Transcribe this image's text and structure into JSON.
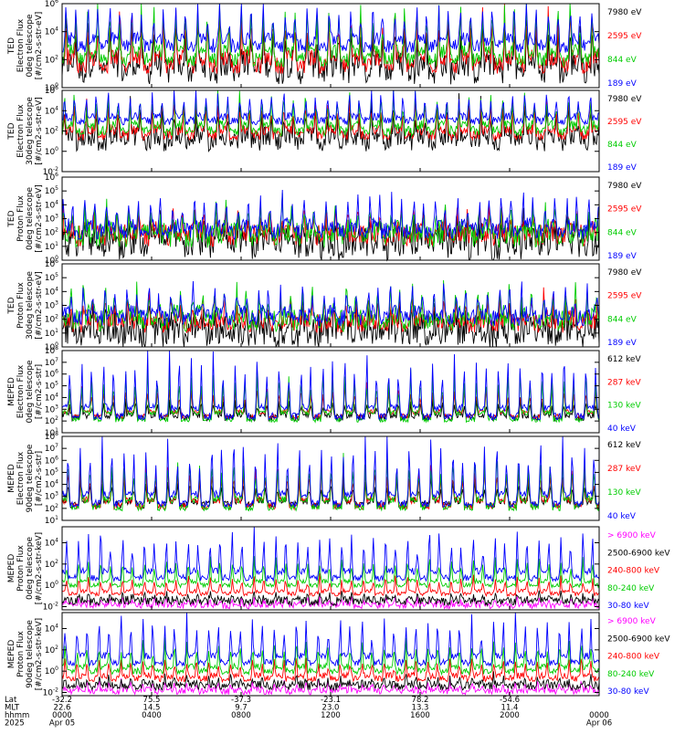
{
  "chart_data": [
    {
      "type": "line",
      "ylabel": [
        "TED",
        "Electron Flux",
        "0deg telescope",
        "[#/cm2-s-str-eV]"
      ],
      "yticks": [
        {
          "exp": "0",
          "v": 0
        },
        {
          "exp": "2",
          "v": 2
        },
        {
          "exp": "4",
          "v": 4
        },
        {
          "exp": "6",
          "v": 6
        }
      ],
      "ylim_log": [
        0,
        6
      ],
      "series": [
        {
          "name": "7980 eV",
          "color": "#000000",
          "base": 1.2,
          "amp": 3.0,
          "noise": 1.0
        },
        {
          "name": "2595 eV",
          "color": "#ff0000",
          "base": 1.6,
          "amp": 3.2,
          "noise": 0.6
        },
        {
          "name": "844 eV",
          "color": "#00cc00",
          "base": 2.0,
          "amp": 3.4,
          "noise": 0.5
        },
        {
          "name": "189 eV",
          "color": "#0000ff",
          "base": 3.0,
          "amp": 2.6,
          "noise": 0.5
        }
      ]
    },
    {
      "type": "line",
      "ylabel": [
        "TED",
        "Electron Flux",
        "30deg telescope",
        "[#/cm2-s-str-eV]"
      ],
      "yticks": [
        {
          "exp": "-2",
          "v": -2
        },
        {
          "exp": "0",
          "v": 0
        },
        {
          "exp": "2",
          "v": 2
        },
        {
          "exp": "4",
          "v": 4
        },
        {
          "exp": "6",
          "v": 6
        }
      ],
      "ylim_log": [
        -2,
        6
      ],
      "series": [
        {
          "name": "7980 eV",
          "color": "#000000",
          "base": 1.0,
          "amp": 3.0,
          "noise": 1.0
        },
        {
          "name": "2595 eV",
          "color": "#ff0000",
          "base": 1.6,
          "amp": 3.0,
          "noise": 0.5
        },
        {
          "name": "844 eV",
          "color": "#00cc00",
          "base": 2.0,
          "amp": 3.2,
          "noise": 0.5
        },
        {
          "name": "189 eV",
          "color": "#0000ff",
          "base": 3.0,
          "amp": 2.4,
          "noise": 0.4
        }
      ]
    },
    {
      "type": "line",
      "ylabel": [
        "TED",
        "Proton Flux",
        "0deg telescope",
        "[#/cm2-s-str-eV]"
      ],
      "yticks": [
        {
          "exp": "0",
          "v": 0
        },
        {
          "exp": "1",
          "v": 1
        },
        {
          "exp": "2",
          "v": 2
        },
        {
          "exp": "3",
          "v": 3
        },
        {
          "exp": "4",
          "v": 4
        },
        {
          "exp": "5",
          "v": 5
        },
        {
          "exp": "6",
          "v": 6
        }
      ],
      "ylim_log": [
        0,
        6
      ],
      "series": [
        {
          "name": "7980 eV",
          "color": "#000000",
          "base": 1.2,
          "amp": 1.5,
          "noise": 1.2
        },
        {
          "name": "2595 eV",
          "color": "#ff0000",
          "base": 1.8,
          "amp": 1.6,
          "noise": 0.8
        },
        {
          "name": "844 eV",
          "color": "#00cc00",
          "base": 1.8,
          "amp": 1.8,
          "noise": 0.9
        },
        {
          "name": "189 eV",
          "color": "#0000ff",
          "base": 2.1,
          "amp": 2.2,
          "noise": 0.6
        }
      ]
    },
    {
      "type": "line",
      "ylabel": [
        "TED",
        "Proton Flux",
        "30deg telescope",
        "[#/cm2-s-str-eV]"
      ],
      "yticks": [
        {
          "exp": "0",
          "v": 0
        },
        {
          "exp": "1",
          "v": 1
        },
        {
          "exp": "2",
          "v": 2
        },
        {
          "exp": "3",
          "v": 3
        },
        {
          "exp": "4",
          "v": 4
        },
        {
          "exp": "5",
          "v": 5
        },
        {
          "exp": "6",
          "v": 6
        }
      ],
      "ylim_log": [
        0,
        6
      ],
      "series": [
        {
          "name": "7980 eV",
          "color": "#000000",
          "base": 1.0,
          "amp": 1.4,
          "noise": 1.1
        },
        {
          "name": "2595 eV",
          "color": "#ff0000",
          "base": 1.7,
          "amp": 1.6,
          "noise": 0.7
        },
        {
          "name": "844 eV",
          "color": "#00cc00",
          "base": 1.9,
          "amp": 2.2,
          "noise": 0.8
        },
        {
          "name": "189 eV",
          "color": "#0000ff",
          "base": 2.1,
          "amp": 2.0,
          "noise": 0.6
        }
      ]
    },
    {
      "type": "line",
      "ylabel": [
        "MEPED",
        "Electron Flux",
        "0deg telescope",
        "[#/cm2-s-str]"
      ],
      "yticks": [
        {
          "exp": "1",
          "v": 1
        },
        {
          "exp": "2",
          "v": 2
        },
        {
          "exp": "3",
          "v": 3
        },
        {
          "exp": "4",
          "v": 4
        },
        {
          "exp": "5",
          "v": 5
        },
        {
          "exp": "6",
          "v": 6
        },
        {
          "exp": "7",
          "v": 7
        },
        {
          "exp": "8",
          "v": 8
        }
      ],
      "ylim_log": [
        1,
        8
      ],
      "series": [
        {
          "name": "612 keV",
          "color": "#000000",
          "base": 2.3,
          "amp": 1.2,
          "noise": 0.3
        },
        {
          "name": "287 keV",
          "color": "#ff0000",
          "base": 2.4,
          "amp": 2.2,
          "noise": 0.2
        },
        {
          "name": "130 keV",
          "color": "#00cc00",
          "base": 2.1,
          "amp": 3.4,
          "noise": 0.2
        },
        {
          "name": "40 keV",
          "color": "#0000ff",
          "base": 2.4,
          "amp": 4.2,
          "noise": 0.3
        }
      ]
    },
    {
      "type": "line",
      "ylabel": [
        "MEPED",
        "Electron Flux",
        "90deg telescope",
        "[#/cm2-s-str]"
      ],
      "yticks": [
        {
          "exp": "1",
          "v": 1
        },
        {
          "exp": "2",
          "v": 2
        },
        {
          "exp": "3",
          "v": 3
        },
        {
          "exp": "4",
          "v": 4
        },
        {
          "exp": "5",
          "v": 5
        },
        {
          "exp": "6",
          "v": 6
        },
        {
          "exp": "7",
          "v": 7
        },
        {
          "exp": "8",
          "v": 8
        }
      ],
      "ylim_log": [
        1,
        8
      ],
      "series": [
        {
          "name": "612 keV",
          "color": "#000000",
          "base": 2.3,
          "amp": 1.8,
          "noise": 0.3
        },
        {
          "name": "287 keV",
          "color": "#ff0000",
          "base": 2.2,
          "amp": 2.8,
          "noise": 0.3
        },
        {
          "name": "130 keV",
          "color": "#00cc00",
          "base": 2.1,
          "amp": 3.6,
          "noise": 0.3
        },
        {
          "name": "40 keV",
          "color": "#0000ff",
          "base": 2.4,
          "amp": 4.4,
          "noise": 0.3
        }
      ]
    },
    {
      "type": "line",
      "ylabel": [
        "MEPED",
        "Proton Flux",
        "0deg telescope",
        "[#/cm2-s-str-keV]"
      ],
      "yticks": [
        {
          "exp": "-2",
          "v": -2
        },
        {
          "exp": "0",
          "v": 0
        },
        {
          "exp": "2",
          "v": 2
        },
        {
          "exp": "4",
          "v": 4
        }
      ],
      "ylim_log": [
        -2.3,
        5.5
      ],
      "series": [
        {
          "name": "> 6900 keV",
          "color": "#ff00ff",
          "base": -1.9,
          "amp": 0.6,
          "noise": 0.3
        },
        {
          "name": "2500-6900 keV",
          "color": "#000000",
          "base": -1.5,
          "amp": 0.6,
          "noise": 0.4
        },
        {
          "name": "240-800 keV",
          "color": "#ff0000",
          "base": -0.8,
          "amp": 1.4,
          "noise": 0.2
        },
        {
          "name": "80-240 keV",
          "color": "#00cc00",
          "base": 0.0,
          "amp": 2.2,
          "noise": 0.2
        },
        {
          "name": "30-80 keV",
          "color": "#0000ff",
          "base": 0.7,
          "amp": 3.6,
          "noise": 0.3
        }
      ]
    },
    {
      "type": "line",
      "ylabel": [
        "MEPED",
        "Proton Flux",
        "90deg telescope",
        "[#/cm2-s-str-keV]"
      ],
      "yticks": [
        {
          "exp": "-2",
          "v": -2
        },
        {
          "exp": "0",
          "v": 0
        },
        {
          "exp": "2",
          "v": 2
        },
        {
          "exp": "4",
          "v": 4
        }
      ],
      "ylim_log": [
        -2.3,
        5.5
      ],
      "series": [
        {
          "name": "> 6900 keV",
          "color": "#ff00ff",
          "base": -1.9,
          "amp": 0.8,
          "noise": 0.3
        },
        {
          "name": "2500-6900 keV",
          "color": "#000000",
          "base": -1.4,
          "amp": 0.8,
          "noise": 0.4
        },
        {
          "name": "240-800 keV",
          "color": "#ff0000",
          "base": -0.7,
          "amp": 1.6,
          "noise": 0.3
        },
        {
          "name": "80-240 keV",
          "color": "#00cc00",
          "base": 0.0,
          "amp": 2.4,
          "noise": 0.3
        },
        {
          "name": "30-80 keV",
          "color": "#0000ff",
          "base": 0.8,
          "amp": 3.6,
          "noise": 0.3
        }
      ]
    }
  ],
  "xaxis": {
    "row_labels": [
      "Lat",
      "MLT",
      "hhmm",
      "2025"
    ],
    "ticks": [
      {
        "rows": [
          "-32.2",
          "22.6",
          "0000",
          "Apr 05"
        ]
      },
      {
        "rows": [
          "75.5",
          "14.5",
          "0400",
          ""
        ]
      },
      {
        "rows": [
          "-37.3",
          "9.7",
          "0800",
          ""
        ]
      },
      {
        "rows": [
          "-23.1",
          "23.0",
          "1200",
          ""
        ]
      },
      {
        "rows": [
          "78.2",
          "13.3",
          "1600",
          ""
        ]
      },
      {
        "rows": [
          "-54.6",
          "11.4",
          "2000",
          ""
        ]
      },
      {
        "rows": [
          "",
          "",
          "0000",
          "Apr 06"
        ]
      }
    ]
  }
}
